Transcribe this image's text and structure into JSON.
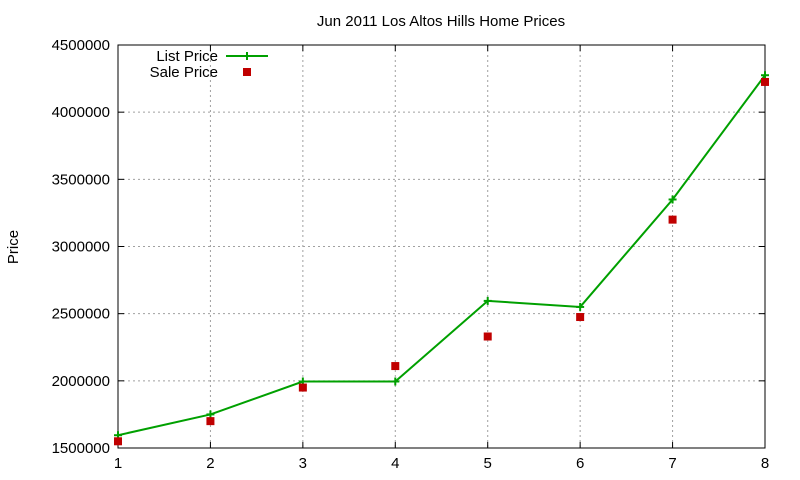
{
  "chart_data": {
    "type": "line",
    "title": "Jun 2011 Los Altos Hills Home Prices",
    "xlabel": "",
    "ylabel": "Price",
    "x": [
      1,
      2,
      3,
      4,
      5,
      6,
      7,
      8
    ],
    "xlim": [
      1,
      8
    ],
    "ylim": [
      1500000,
      4500000
    ],
    "xticks": [
      1,
      2,
      3,
      4,
      5,
      6,
      7,
      8
    ],
    "yticks": [
      1500000,
      2000000,
      2500000,
      3000000,
      3500000,
      4000000,
      4500000
    ],
    "grid": true,
    "legend_position": "top-left",
    "series": [
      {
        "name": "List Price",
        "style": "line-with-plus-markers",
        "color": "#00a000",
        "values": [
          1595000,
          1750000,
          1995000,
          1995000,
          2595000,
          2550000,
          3350000,
          4275000
        ]
      },
      {
        "name": "Sale Price",
        "style": "square-markers",
        "color": "#c00000",
        "values": [
          1550000,
          1700000,
          1950000,
          2110000,
          2330000,
          2475000,
          3200000,
          4225000
        ]
      }
    ]
  }
}
